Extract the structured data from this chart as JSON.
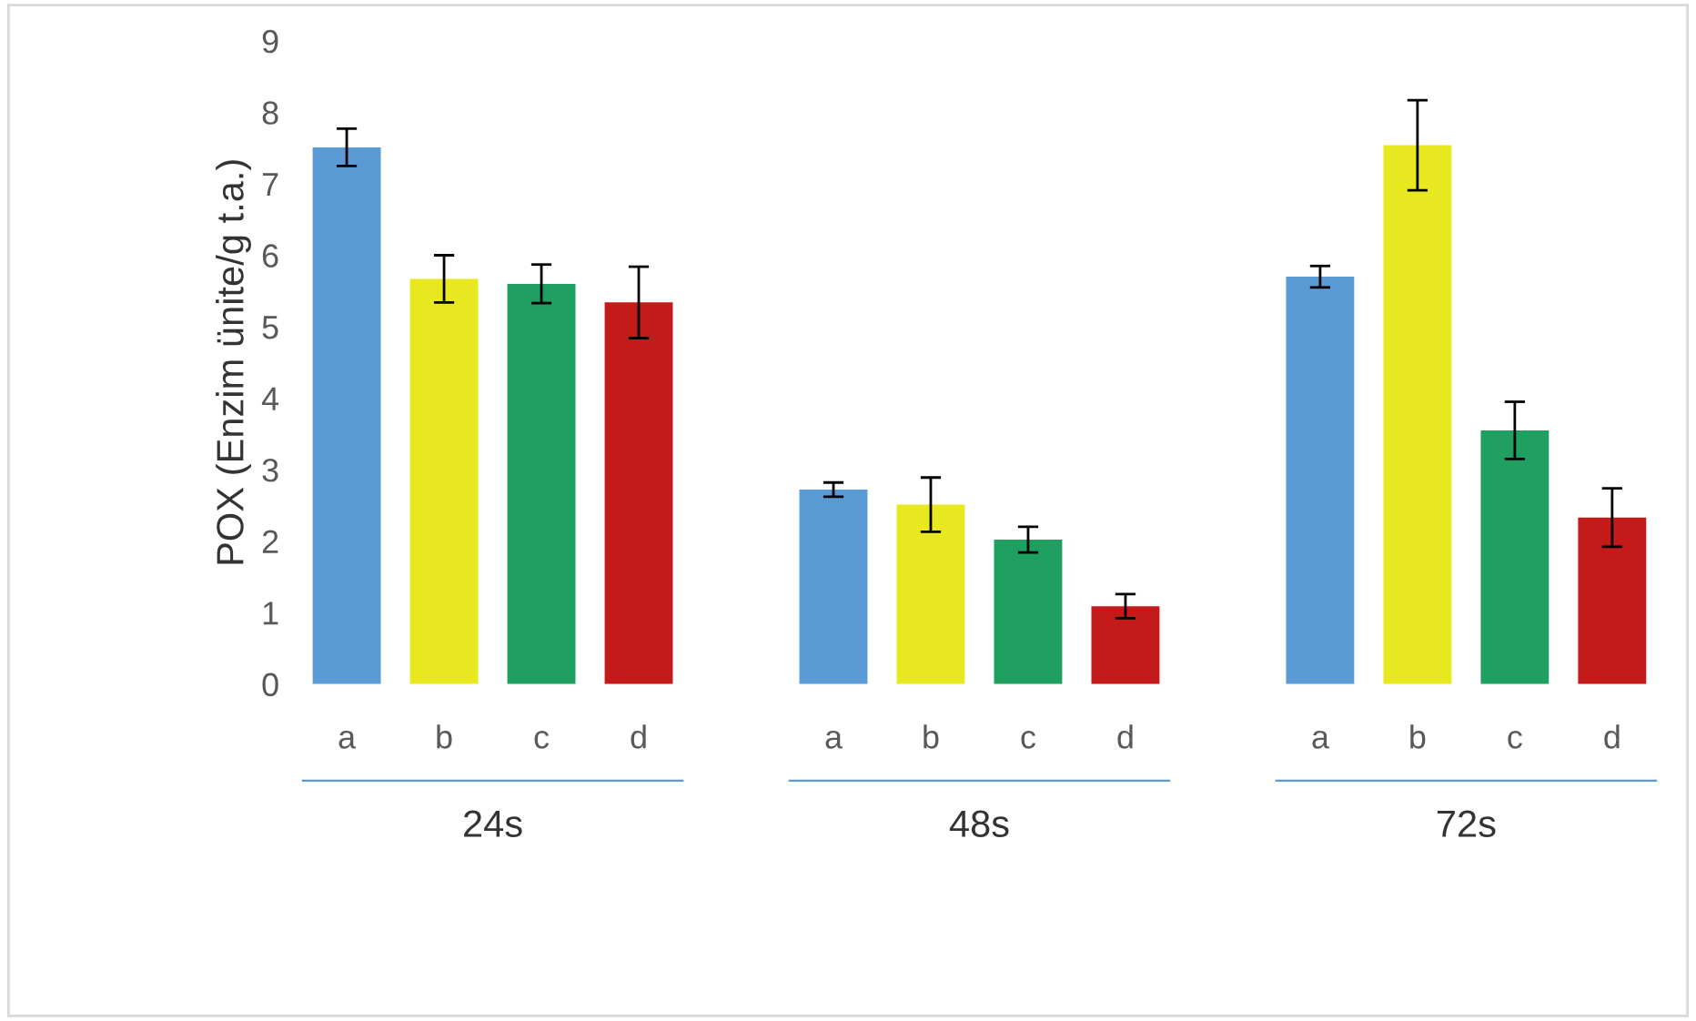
{
  "chart_data": {
    "type": "bar",
    "ylabel": "POX (Enzim ünite/g t.a.)",
    "categories": [
      "a",
      "b",
      "c",
      "d",
      null,
      "a",
      "b",
      "c",
      "d",
      null,
      "a",
      "b",
      "c",
      "d"
    ],
    "values": [
      7.51,
      5.67,
      5.6,
      5.34,
      null,
      2.72,
      2.51,
      2.02,
      1.09,
      null,
      5.7,
      7.54,
      3.55,
      2.33
    ],
    "errors": [
      0.26,
      0.33,
      0.27,
      0.5,
      null,
      0.1,
      0.38,
      0.18,
      0.17,
      null,
      0.15,
      0.63,
      0.4,
      0.41
    ],
    "colors": [
      "#5b9bd5",
      "#e8e820",
      "#1fa060",
      "#c41a1a",
      null,
      "#5b9bd5",
      "#e8e820",
      "#1fa060",
      "#c41a1a",
      null,
      "#5b9bd5",
      "#e8e820",
      "#1fa060",
      "#c41a1a"
    ],
    "annotations": [
      "24s",
      "48s",
      "72s"
    ],
    "ylim": [
      0,
      9
    ],
    "yticks": [
      0,
      1,
      2,
      3,
      4,
      5,
      6,
      7,
      8,
      9
    ],
    "grid": false,
    "legend": false
  }
}
